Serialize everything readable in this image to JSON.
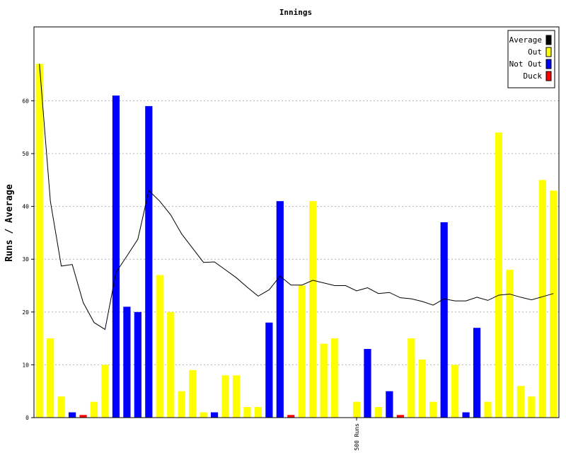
{
  "chart_data": {
    "type": "bar",
    "title": "Innings",
    "xlabel": "",
    "ylabel": "Runs / Average",
    "ylim": [
      0,
      74
    ],
    "yticks": [
      0,
      10,
      20,
      30,
      40,
      50,
      60
    ],
    "grid": true,
    "legend_position": "top-right",
    "x_annotations": [
      {
        "index": 29,
        "label": "500 Runs"
      }
    ],
    "legend": [
      {
        "label": "Average",
        "color": "#000000"
      },
      {
        "label": "Out",
        "color": "#ffff00"
      },
      {
        "label": "Not Out",
        "color": "#0000ff"
      },
      {
        "label": "Duck",
        "color": "#ff0000"
      }
    ],
    "series": [
      {
        "name": "Innings",
        "values": [
          67,
          15,
          4,
          1,
          0.5,
          3,
          10,
          61,
          21,
          20,
          59,
          27,
          20,
          5,
          9,
          1,
          1,
          8,
          8,
          2,
          2,
          18,
          41,
          0.5,
          25,
          41,
          14,
          15,
          0,
          3,
          13,
          2,
          5,
          0.5,
          15,
          11,
          3,
          37,
          10,
          1,
          17,
          3,
          54,
          28,
          6,
          4,
          45,
          43
        ],
        "status": [
          "out",
          "out",
          "out",
          "not out",
          "duck",
          "out",
          "out",
          "not out",
          "not out",
          "not out",
          "not out",
          "out",
          "out",
          "out",
          "out",
          "out",
          "not out",
          "out",
          "out",
          "out",
          "out",
          "not out",
          "not out",
          "duck",
          "out",
          "out",
          "out",
          "out",
          "out",
          "out",
          "not out",
          "out",
          "not out",
          "duck",
          "out",
          "out",
          "out",
          "not out",
          "out",
          "not out",
          "not out",
          "out",
          "out",
          "out",
          "out",
          "out",
          "out",
          "out"
        ]
      },
      {
        "name": "Average",
        "type": "line",
        "values": [
          67,
          41,
          28.7,
          29,
          21.8,
          18,
          16.7,
          27.5,
          30.6,
          33.8,
          43,
          41,
          38.4,
          34.8,
          32.1,
          29.4,
          29.5,
          28,
          26.5,
          24.7,
          23,
          24.2,
          26.8,
          25.1,
          25.1,
          26,
          25.5,
          25,
          25,
          24,
          24.6,
          23.5,
          23.7,
          22.7,
          22.5,
          22,
          21.3,
          22.5,
          22.1,
          22.1,
          22.8,
          22.2,
          23.2,
          23.4,
          22.8,
          22.3,
          22.9,
          23.5
        ]
      }
    ]
  }
}
